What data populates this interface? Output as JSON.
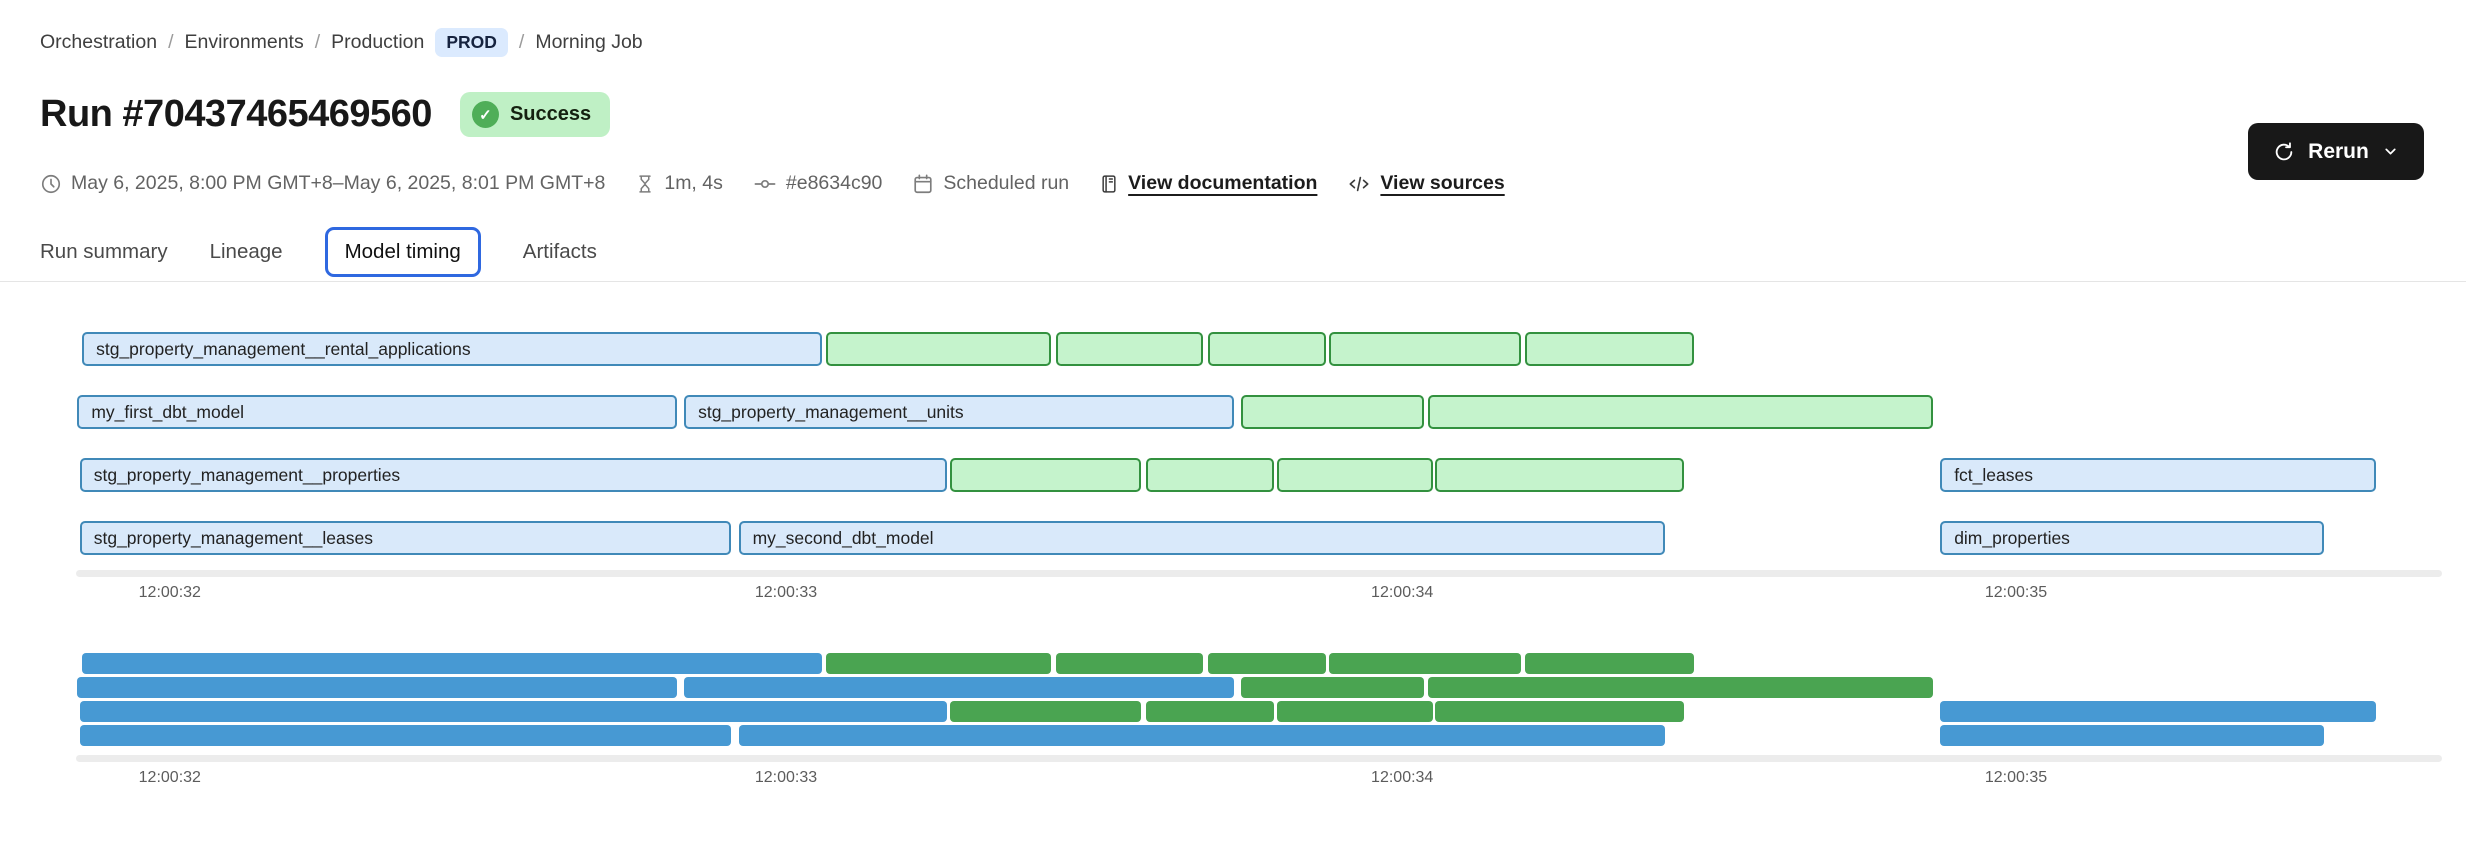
{
  "breadcrumb": {
    "separator": "/",
    "items": [
      {
        "label": "Orchestration"
      },
      {
        "label": "Environments"
      },
      {
        "label": "Production"
      }
    ],
    "env_badge": "PROD",
    "current": "Morning Job"
  },
  "header": {
    "title": "Run #70437465469560",
    "status_badge": "Success",
    "status_check": "✓"
  },
  "meta": {
    "time_range": "May 6, 2025, 8:00 PM GMT+8–May 6, 2025, 8:01 PM GMT+8",
    "duration": "1m, 4s",
    "commit_sha": "#e8634c90",
    "trigger": "Scheduled run",
    "documentation_link": "View documentation",
    "sources_link": "View sources"
  },
  "actions": {
    "rerun_label": "Rerun"
  },
  "tabs": [
    {
      "label": "Run summary",
      "active": false
    },
    {
      "label": "Lineage",
      "active": false
    },
    {
      "label": "Model timing",
      "active": true
    },
    {
      "label": "Artifacts",
      "active": false
    }
  ],
  "gantt": {
    "type": "gantt",
    "axis_ticks": [
      {
        "label": "12:00:32",
        "pos_pct": 4.0
      },
      {
        "label": "12:00:33",
        "pos_pct": 30.0
      },
      {
        "label": "12:00:34",
        "pos_pct": 56.0
      },
      {
        "label": "12:00:35",
        "pos_pct": 81.9
      }
    ],
    "rows": [
      {
        "bars": [
          {
            "label": "stg_property_management__rental_applications",
            "color": "blue",
            "left_pct": 0.3,
            "width_pct": 31.2
          },
          {
            "label": "",
            "color": "green",
            "left_pct": 31.7,
            "width_pct": 9.5
          },
          {
            "label": "",
            "color": "green",
            "left_pct": 41.4,
            "width_pct": 6.2
          },
          {
            "label": "",
            "color": "green",
            "left_pct": 47.8,
            "width_pct": 5.0
          },
          {
            "label": "",
            "color": "green",
            "left_pct": 52.9,
            "width_pct": 8.1
          },
          {
            "label": "",
            "color": "green",
            "left_pct": 61.2,
            "width_pct": 7.1
          }
        ]
      },
      {
        "bars": [
          {
            "label": "my_first_dbt_model",
            "color": "blue",
            "left_pct": 0.1,
            "width_pct": 25.3
          },
          {
            "label": "stg_property_management__units",
            "color": "blue",
            "left_pct": 25.7,
            "width_pct": 23.2
          },
          {
            "label": "",
            "color": "green",
            "left_pct": 49.2,
            "width_pct": 7.7
          },
          {
            "label": "",
            "color": "green",
            "left_pct": 57.1,
            "width_pct": 21.3
          }
        ]
      },
      {
        "bars": [
          {
            "label": "stg_property_management__properties",
            "color": "blue",
            "left_pct": 0.2,
            "width_pct": 36.6
          },
          {
            "label": "",
            "color": "green",
            "left_pct": 36.9,
            "width_pct": 8.1
          },
          {
            "label": "",
            "color": "green",
            "left_pct": 45.2,
            "width_pct": 5.4
          },
          {
            "label": "",
            "color": "green",
            "left_pct": 50.7,
            "width_pct": 6.6
          },
          {
            "label": "",
            "color": "green",
            "left_pct": 57.4,
            "width_pct": 10.5
          },
          {
            "label": "fct_leases",
            "color": "blue",
            "left_pct": 78.7,
            "width_pct": 18.4
          }
        ]
      },
      {
        "bars": [
          {
            "label": "stg_property_management__leases",
            "color": "blue",
            "left_pct": 0.2,
            "width_pct": 27.5
          },
          {
            "label": "my_second_dbt_model",
            "color": "blue",
            "left_pct": 28.0,
            "width_pct": 39.1
          },
          {
            "label": "dim_properties",
            "color": "blue",
            "left_pct": 78.7,
            "width_pct": 16.2
          }
        ]
      }
    ]
  },
  "colors": {
    "model_bar_fill": "#d9e9fa",
    "model_bar_border": "#4089b8",
    "test_bar_fill": "#c5f3cc",
    "test_bar_border": "#33913f",
    "minimap_blue": "#4799d3",
    "minimap_green": "#4aa451",
    "status_badge_bg": "#bff0c5",
    "status_badge_dot": "#4fae58",
    "env_badge_bg": "#dbeafe",
    "active_tab_border": "#2f68e0",
    "rerun_button_bg": "#181818"
  }
}
